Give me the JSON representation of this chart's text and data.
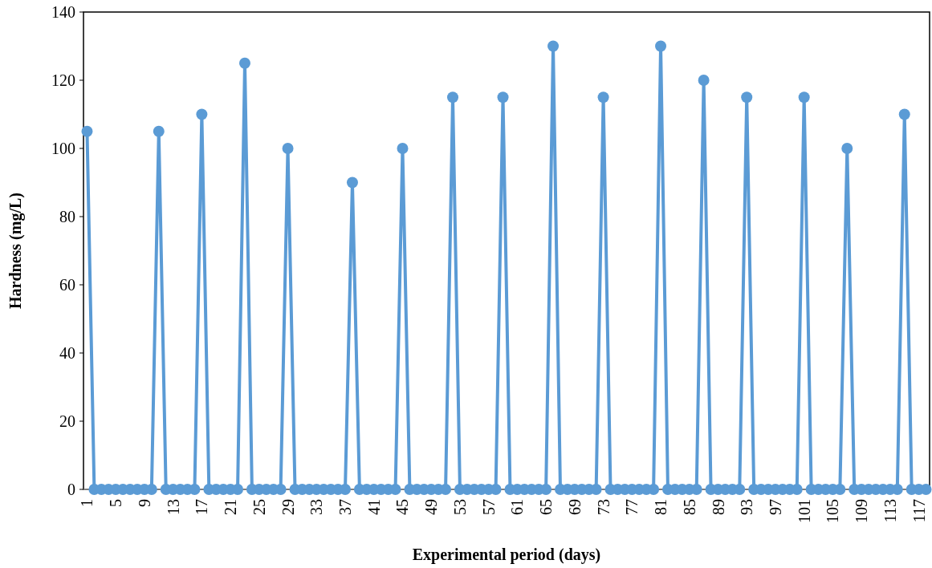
{
  "chart_data": {
    "type": "line",
    "xlabel": "Experimental period (days)",
    "ylabel": "Hardness (mg/L)",
    "categories": [
      "1",
      null,
      null,
      null,
      "5",
      null,
      null,
      null,
      "9",
      null,
      null,
      null,
      "13",
      null,
      null,
      null,
      "17",
      null,
      null,
      null,
      "21",
      null,
      null,
      null,
      "25",
      null,
      null,
      null,
      "29",
      null,
      null,
      null,
      "33",
      null,
      null,
      null,
      "37",
      null,
      null,
      null,
      "41",
      null,
      null,
      null,
      "45",
      null,
      null,
      null,
      "49",
      null,
      null,
      null,
      "53",
      null,
      null,
      null,
      "57",
      null,
      null,
      null,
      "61",
      null,
      null,
      null,
      "65",
      null,
      null,
      null,
      "69",
      null,
      null,
      null,
      "73",
      null,
      null,
      null,
      "77",
      null,
      null,
      null,
      "81",
      null,
      null,
      null,
      "85",
      null,
      null,
      null,
      "89",
      null,
      null,
      null,
      "93",
      null,
      null,
      null,
      "97",
      null,
      null,
      null,
      "101",
      null,
      null,
      null,
      "105",
      null,
      null,
      null,
      "109",
      null,
      null,
      null,
      "113",
      null,
      null,
      null,
      "117",
      null
    ],
    "series": [
      {
        "color": "#5b9bd5",
        "values": [
          105,
          0,
          0,
          0,
          0,
          0,
          0,
          0,
          0,
          0,
          105,
          0,
          0,
          0,
          0,
          0,
          110,
          0,
          0,
          0,
          0,
          0,
          125,
          0,
          0,
          0,
          0,
          0,
          100,
          0,
          0,
          0,
          0,
          0,
          0,
          0,
          0,
          90,
          0,
          0,
          0,
          0,
          0,
          0,
          100,
          0,
          0,
          0,
          0,
          0,
          0,
          115,
          0,
          0,
          0,
          0,
          0,
          0,
          115,
          0,
          0,
          0,
          0,
          0,
          0,
          130,
          0,
          0,
          0,
          0,
          0,
          0,
          115,
          0,
          0,
          0,
          0,
          0,
          0,
          0,
          130,
          0,
          0,
          0,
          0,
          0,
          120,
          0,
          0,
          0,
          0,
          0,
          115,
          0,
          0,
          0,
          0,
          0,
          0,
          0,
          115,
          0,
          0,
          0,
          0,
          0,
          100,
          0,
          0,
          0,
          0,
          0,
          0,
          0,
          110,
          0,
          0,
          0
        ]
      }
    ],
    "ylim": [
      0,
      140
    ],
    "yticks": [
      0,
      20,
      40,
      60,
      80,
      100,
      120,
      140
    ],
    "marker": "circle",
    "line_style": "solid"
  }
}
